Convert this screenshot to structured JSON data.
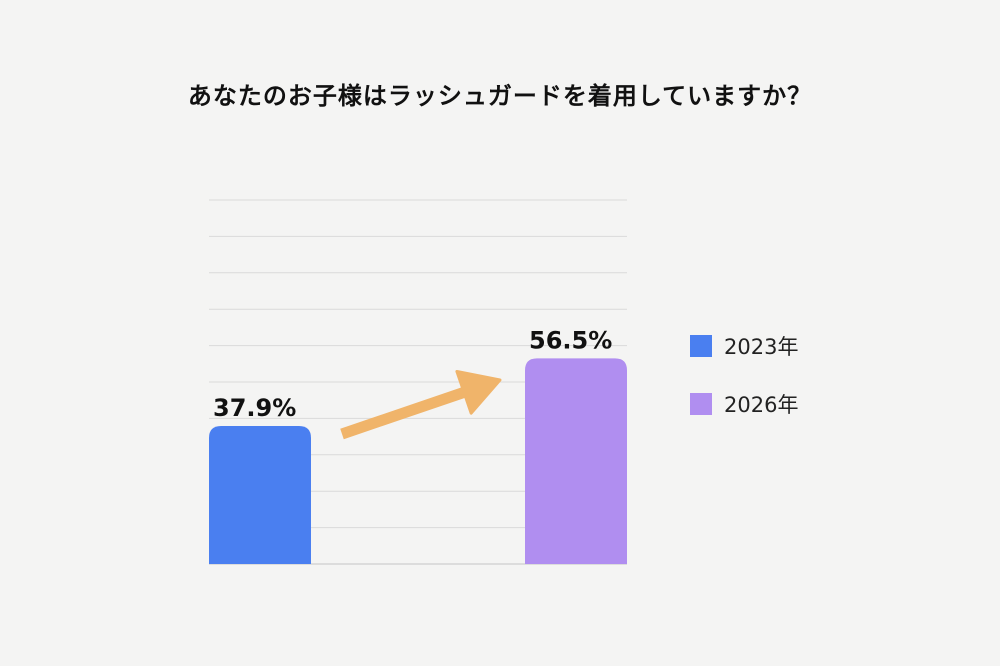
{
  "chart_data": {
    "type": "bar",
    "title": "あなたのお子様はラッシュガードを着用していますか？",
    "categories": [
      "2023年",
      "2026年"
    ],
    "values": [
      37.9,
      56.5
    ],
    "value_labels": [
      "37.9%",
      "56.5%"
    ],
    "colors": [
      "#4a7ff0",
      "#b08ef0"
    ],
    "arrow_color": "#f0b46a",
    "ylim": [
      0,
      100
    ],
    "grid": true,
    "legend_position": "right",
    "xlabel": "",
    "ylabel": ""
  }
}
